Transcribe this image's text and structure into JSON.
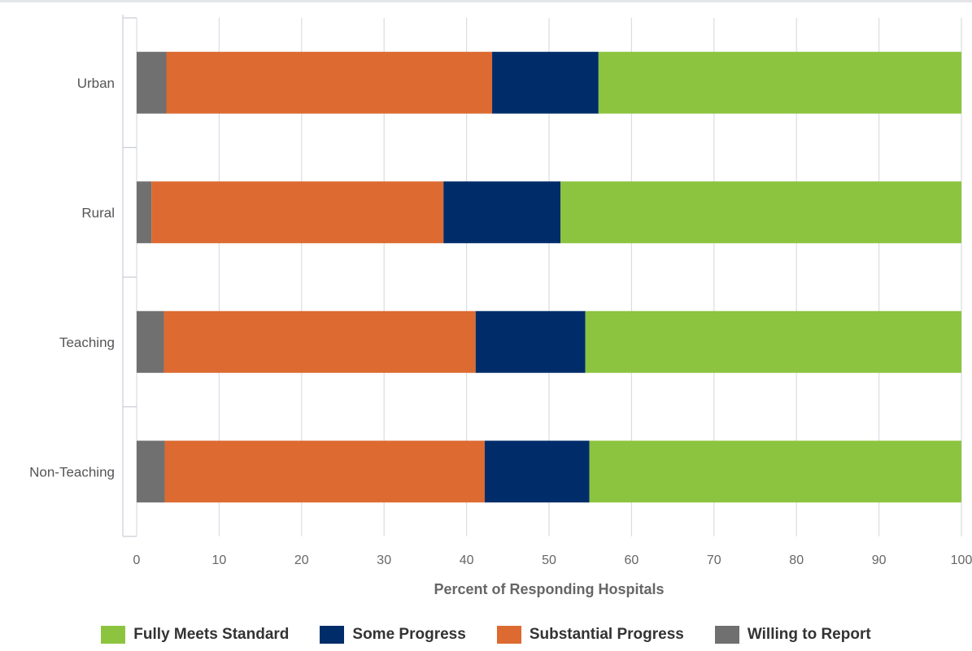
{
  "chart_data": {
    "type": "bar",
    "orientation": "horizontal",
    "stacked": true,
    "categories": [
      "Urban",
      "Rural",
      "Teaching",
      "Non-Teaching"
    ],
    "xlabel": "Percent of Responding Hospitals",
    "ylabel": "",
    "xlim": [
      0,
      100
    ],
    "xticks": [
      "0",
      "10",
      "20",
      "30",
      "40",
      "50",
      "60",
      "70",
      "80",
      "90",
      "100"
    ],
    "grid": true,
    "legend_position": "bottom",
    "series": [
      {
        "name": "Willing to Report",
        "color": "#707070",
        "values": [
          3.6,
          1.8,
          3.3,
          3.4
        ]
      },
      {
        "name": "Substantial Progress",
        "color": "#dc6a31",
        "values": [
          39.5,
          35.4,
          37.8,
          38.8
        ]
      },
      {
        "name": "Some Progress",
        "color": "#002d6a",
        "values": [
          12.9,
          14.2,
          13.3,
          12.7
        ]
      },
      {
        "name": "Fully Meets Standard",
        "color": "#8cc43f",
        "values": [
          44.0,
          48.6,
          45.6,
          45.1
        ]
      }
    ],
    "legend_order": [
      "Fully Meets Standard",
      "Some Progress",
      "Substantial Progress",
      "Willing to Report"
    ]
  }
}
